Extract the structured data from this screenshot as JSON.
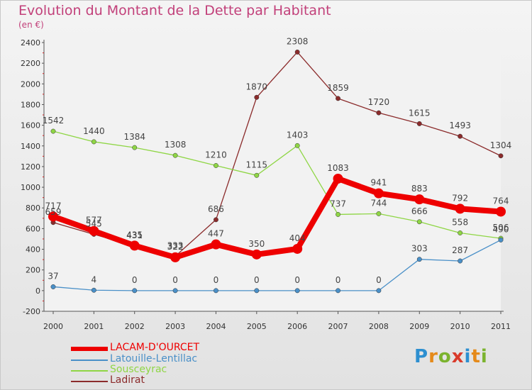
{
  "chart_data": {
    "type": "line",
    "title": "Evolution du Montant de la Dette par Habitant",
    "subtitle": "(en €)",
    "x": [
      "2000",
      "2001",
      "2002",
      "2003",
      "2004",
      "2005",
      "2006",
      "2007",
      "2008",
      "2009",
      "2010",
      "2011"
    ],
    "ylim": [
      -200,
      2400
    ],
    "yticks": [
      -200,
      0,
      200,
      400,
      600,
      800,
      1000,
      1200,
      1400,
      1600,
      1800,
      2000,
      2200,
      2400
    ],
    "grid": false,
    "legend_position": "bottom-left",
    "series": [
      {
        "name": "LACAM-D'OURCET",
        "color": "#ee0000",
        "values": [
          717,
          577,
          435,
          322,
          447,
          350,
          404,
          1083,
          941,
          883,
          792,
          764
        ]
      },
      {
        "name": "Latouille-Lentillac",
        "color": "#4a90c8",
        "values": [
          37,
          4,
          0,
          0,
          0,
          0,
          0,
          0,
          0,
          303,
          287,
          490
        ]
      },
      {
        "name": "Sousceyrac",
        "color": "#8fd645",
        "values": [
          1542,
          1440,
          1384,
          1308,
          1210,
          1115,
          1403,
          737,
          744,
          666,
          558,
          506
        ]
      },
      {
        "name": "Ladirat",
        "color": "#8b2b2b",
        "values": [
          659,
          545,
          431,
          333,
          686,
          1870,
          2308,
          1859,
          1720,
          1615,
          1493,
          1304
        ]
      }
    ]
  },
  "logo": {
    "letters": [
      "P",
      "r",
      "o",
      "x",
      "i",
      "t",
      "i"
    ]
  }
}
